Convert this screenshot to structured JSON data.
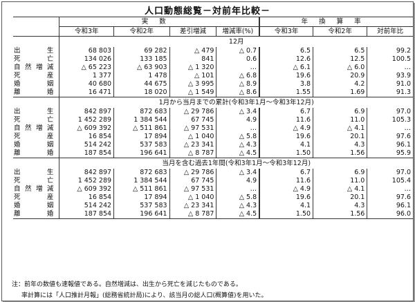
{
  "title": "人口動態総覧－対前年比較－",
  "headers": {
    "group1": "実数",
    "group2": "年換算率",
    "cols": [
      "令和3年",
      "令和2年",
      "差引増減",
      "増減率(%)",
      "令和3年",
      "令和2年",
      "対前年比"
    ]
  },
  "sections": [
    {
      "title": "12月",
      "rows": [
        {
          "label": "出生",
          "values": [
            "68 803",
            "69 282",
            "△ 479",
            "△ 0.7",
            "6.5",
            "6.5",
            "99.2"
          ]
        },
        {
          "label": "死亡",
          "values": [
            "134 026",
            "133 185",
            "841",
            "0.6",
            "12.6",
            "12.5",
            "100.5"
          ]
        },
        {
          "label": "自然増減",
          "values": [
            "△ 65 223",
            "△ 63 903",
            "△ 1 320",
            "…",
            "△ 6.1",
            "△ 6.0",
            "…"
          ]
        },
        {
          "label": "死産",
          "values": [
            "1 377",
            "1 478",
            "△ 101",
            "△ 6.8",
            "19.6",
            "20.9",
            "93.9"
          ]
        },
        {
          "label": "婚姻",
          "values": [
            "40 680",
            "44 675",
            "△ 3 995",
            "△ 8.9",
            "3.8",
            "4.2",
            "91.0"
          ]
        },
        {
          "label": "離婚",
          "values": [
            "16 471",
            "18 020",
            "△ 1 549",
            "△ 8.6",
            "1.55",
            "1.69",
            "91.3"
          ]
        }
      ]
    },
    {
      "title": "1月から当月までの累計(令和3年1月～令和3年12月)",
      "rows": [
        {
          "label": "出生",
          "values": [
            "842 897",
            "872 683",
            "△ 29 786",
            "△ 3.4",
            "6.7",
            "6.9",
            "97.0"
          ]
        },
        {
          "label": "死亡",
          "values": [
            "1 452 289",
            "1 384 544",
            "67 745",
            "4.9",
            "11.6",
            "11.0",
            "105.3"
          ]
        },
        {
          "label": "自然増減",
          "values": [
            "△ 609 392",
            "△ 511 861",
            "△ 97 531",
            "…",
            "△ 4.9",
            "△ 4.1",
            "…"
          ]
        },
        {
          "label": "死産",
          "values": [
            "16 854",
            "17 894",
            "△ 1 040",
            "△ 5.8",
            "19.6",
            "20.1",
            "97.6"
          ]
        },
        {
          "label": "婚姻",
          "values": [
            "514 242",
            "537 583",
            "△ 23 341",
            "△ 4.3",
            "4.1",
            "4.3",
            "96.1"
          ]
        },
        {
          "label": "離婚",
          "values": [
            "187 854",
            "196 641",
            "△ 8 787",
            "△ 4.5",
            "1.50",
            "1.56",
            "95.9"
          ]
        }
      ]
    },
    {
      "title": "当月を含む過去1年間(令和3年1月～令和3年12月)",
      "rows": [
        {
          "label": "出生",
          "values": [
            "842 897",
            "872 683",
            "△ 29 786",
            "△ 3.4",
            "6.7",
            "6.9",
            "97.0"
          ]
        },
        {
          "label": "死亡",
          "values": [
            "1 452 289",
            "1 384 544",
            "67 745",
            "4.9",
            "11.6",
            "11.0",
            "105.4"
          ]
        },
        {
          "label": "自然増減",
          "values": [
            "△ 609 392",
            "△ 511 861",
            "△ 97 531",
            "…",
            "△ 4.9",
            "△ 4.1",
            "…"
          ]
        },
        {
          "label": "死産",
          "values": [
            "16 854",
            "17 894",
            "△ 1 040",
            "△ 5.8",
            "19.6",
            "20.1",
            "97.6"
          ]
        },
        {
          "label": "婚姻",
          "values": [
            "514 242",
            "537 583",
            "△ 23 341",
            "△ 4.3",
            "4.1",
            "4.3",
            "96.1"
          ]
        },
        {
          "label": "離婚",
          "values": [
            "187 854",
            "196 641",
            "△ 8 787",
            "△ 4.5",
            "1.50",
            "1.56",
            "96.0"
          ]
        }
      ]
    }
  ],
  "notes": [
    "注：前年の数値も速報値である。自然増減は、出生から死亡を減じたものである。",
    "率計算には「人口推計月報」(総務省統計局)により、該当月の総人口(概算値)を用いた。"
  ]
}
